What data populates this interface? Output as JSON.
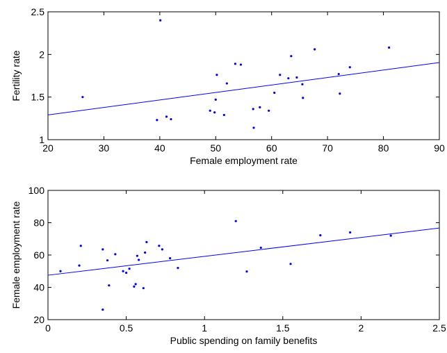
{
  "chart_data": [
    {
      "type": "scatter",
      "xlabel": "Female employment rate",
      "ylabel": "Fertility rate",
      "xlim": [
        20,
        90
      ],
      "ylim": [
        1,
        2.5
      ],
      "xticks": [
        "20",
        "30",
        "40",
        "50",
        "60",
        "70",
        "80",
        "90"
      ],
      "yticks": [
        "1",
        "1.5",
        "2",
        "2.5"
      ],
      "grid": false,
      "series": [
        {
          "marker_color": "#0000ff",
          "x": [
            26.2,
            40.1,
            39.5,
            41.2,
            42.0,
            49.0,
            49.8,
            50.0,
            50.2,
            51.5,
            52.0,
            53.5,
            54.5,
            56.7,
            56.8,
            57.9,
            59.5,
            60.5,
            61.5,
            63.0,
            63.5,
            64.5,
            65.5,
            65.6,
            67.7,
            72.0,
            72.2,
            74.0,
            81.0
          ],
          "y": [
            1.5,
            2.4,
            1.23,
            1.27,
            1.24,
            1.34,
            1.32,
            1.47,
            1.76,
            1.29,
            1.66,
            1.89,
            1.88,
            1.36,
            1.14,
            1.38,
            1.34,
            1.55,
            1.76,
            1.72,
            1.98,
            1.73,
            1.65,
            1.49,
            2.06,
            1.77,
            1.54,
            1.85,
            2.08
          ]
        }
      ],
      "fit_line": {
        "color": "#0000ff",
        "x": [
          20,
          90
        ],
        "y": [
          1.29,
          1.905
        ]
      }
    },
    {
      "type": "scatter",
      "xlabel": "Public spending on family benefits",
      "ylabel": "Female employment rate",
      "xlim": [
        0,
        2.5
      ],
      "ylim": [
        20,
        100
      ],
      "xticks": [
        "0",
        "0.5",
        "1",
        "1.5",
        "2",
        "2.5"
      ],
      "yticks": [
        "20",
        "40",
        "60",
        "80",
        "100"
      ],
      "grid": false,
      "series": [
        {
          "marker_color": "#0000ff",
          "x": [
            0.08,
            0.2,
            0.21,
            0.35,
            0.35,
            0.38,
            0.39,
            0.43,
            0.48,
            0.5,
            0.52,
            0.55,
            0.56,
            0.57,
            0.58,
            0.61,
            0.62,
            0.63,
            0.71,
            0.73,
            0.78,
            0.83,
            1.2,
            1.27,
            1.36,
            1.55,
            1.74,
            1.93,
            2.19
          ],
          "y": [
            50.0,
            53.5,
            65.7,
            26.2,
            63.5,
            56.7,
            41.2,
            60.5,
            50.0,
            49.0,
            51.5,
            40.5,
            42.0,
            59.5,
            57.0,
            39.5,
            61.5,
            68.0,
            65.7,
            63.5,
            58.0,
            52.0,
            81.0,
            49.8,
            64.5,
            54.5,
            72.2,
            74.0,
            72.0
          ]
        }
      ],
      "fit_line": {
        "color": "#0000ff",
        "x": [
          0,
          2.5
        ],
        "y": [
          47.5,
          76.7
        ]
      }
    }
  ]
}
